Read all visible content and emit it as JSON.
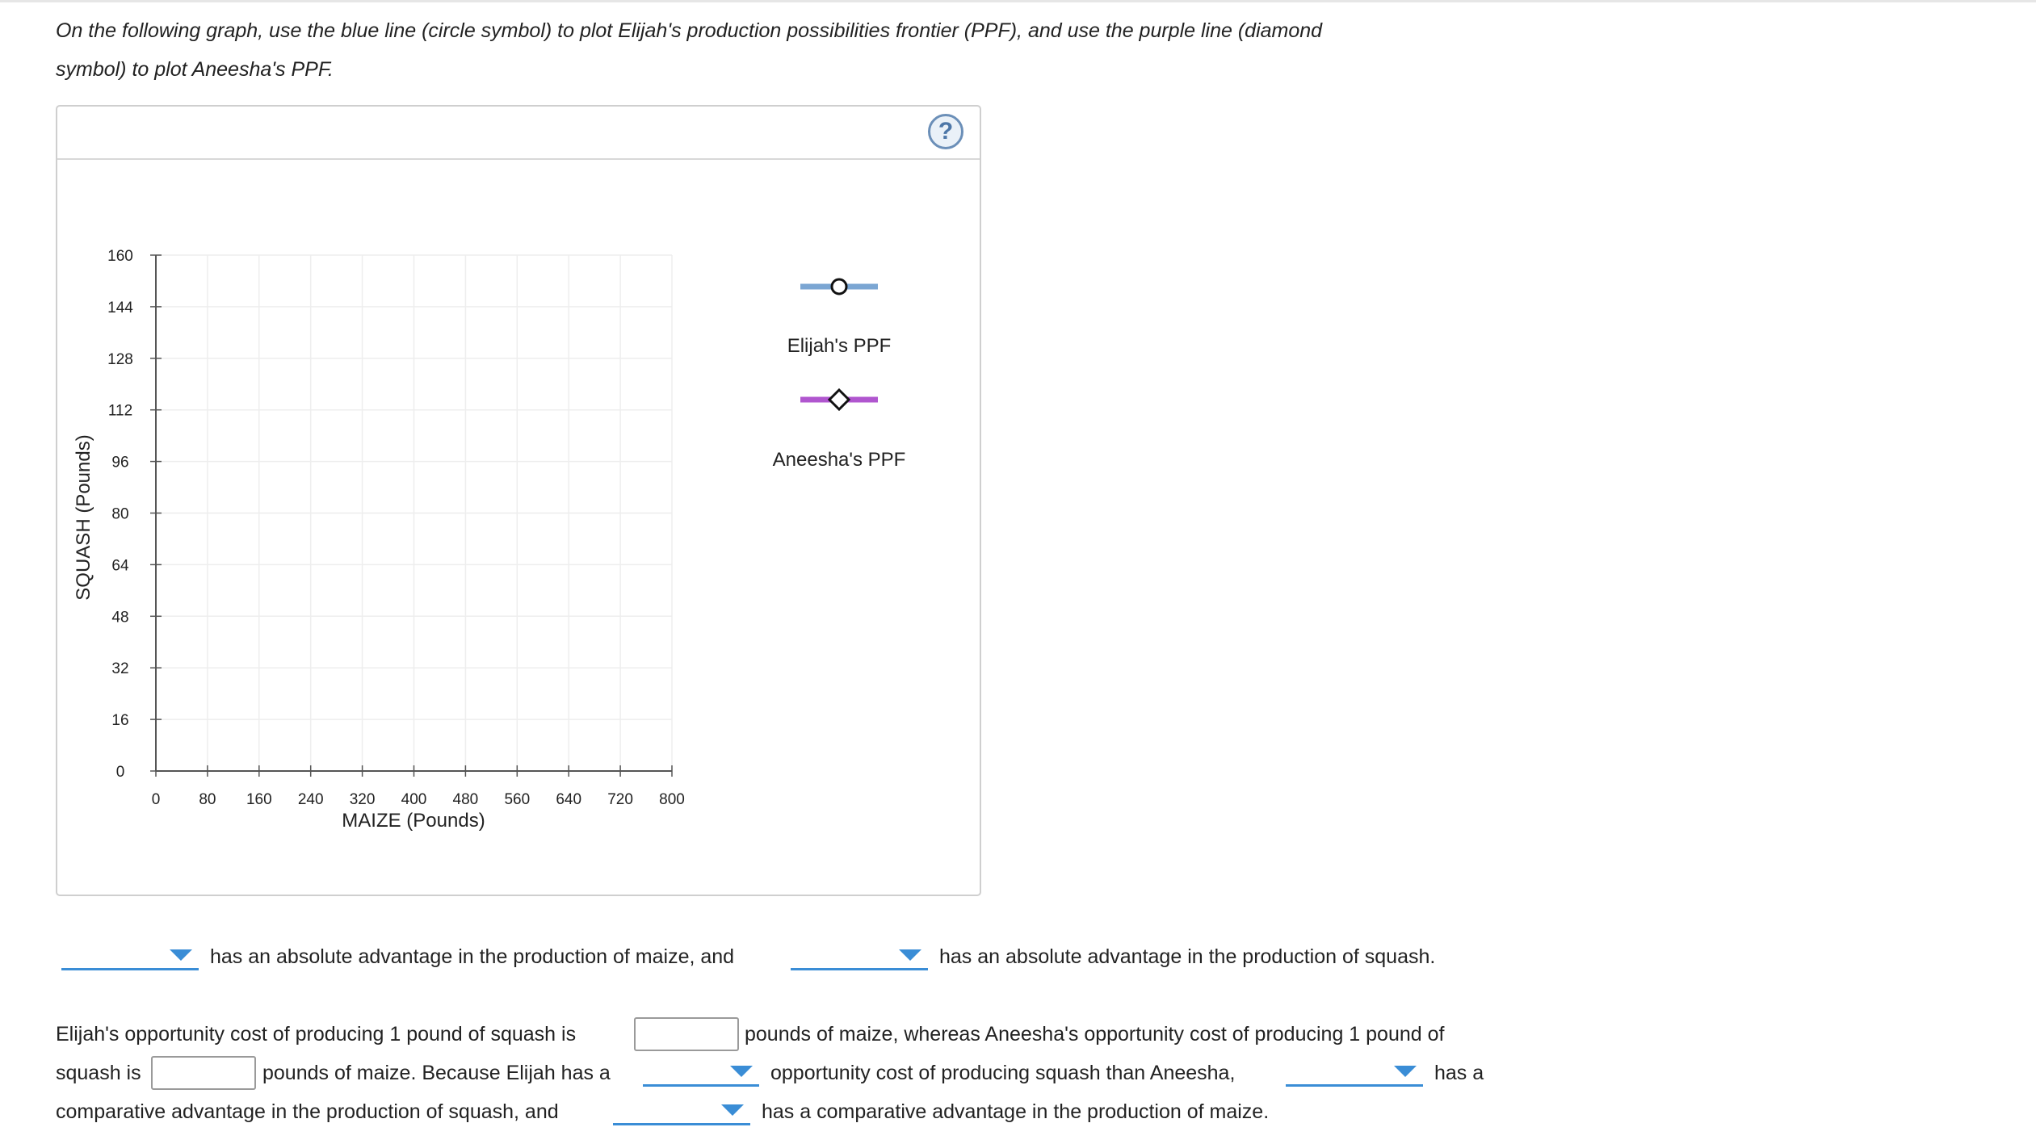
{
  "instructions": {
    "line1": "On the following graph, use the blue line (circle symbol) to plot Elijah's production possibilities frontier (PPF), and use the purple line (diamond",
    "line2": "symbol) to plot Aneesha's PPF."
  },
  "help_button": {
    "symbol": "?",
    "icon": "question-circle-icon"
  },
  "chart_data": {
    "type": "line",
    "xlabel": "MAIZE (Pounds)",
    "ylabel": "SQUASH (Pounds)",
    "xlim": [
      0,
      800
    ],
    "ylim": [
      0,
      160
    ],
    "x_ticks": [
      "0",
      "80",
      "160",
      "240",
      "320",
      "400",
      "480",
      "560",
      "640",
      "720",
      "800"
    ],
    "y_ticks": [
      "0",
      "16",
      "32",
      "48",
      "64",
      "80",
      "96",
      "112",
      "128",
      "144",
      "160"
    ],
    "grid": true,
    "legend_position": "right",
    "series": [
      {
        "name": "Elijah's PPF",
        "marker": "circle",
        "color": "#7ba6d3",
        "points": []
      },
      {
        "name": "Aneesha's PPF",
        "marker": "diamond",
        "color": "#b056cf",
        "points": []
      }
    ]
  },
  "questions": {
    "q1": {
      "dropdown1_value": "",
      "text1": "has an absolute advantage in the production of maize, and",
      "dropdown2_value": "",
      "text2": "has an absolute advantage in the production of squash."
    },
    "q2": {
      "text1": "Elijah's opportunity cost of producing 1 pound of squash is",
      "input1_value": "",
      "text2": "pounds of maize, whereas Aneesha's opportunity cost of producing 1 pound of",
      "text3": "squash is",
      "input2_value": "",
      "text4": "pounds of maize. Because Elijah has a",
      "dropdown3_value": "",
      "text5": "opportunity cost of producing squash than Aneesha,",
      "dropdown4_value": "",
      "text6": "has a",
      "text7": "comparative advantage in the production of squash, and",
      "dropdown5_value": "",
      "text8": "has a comparative advantage in the production of maize."
    }
  }
}
